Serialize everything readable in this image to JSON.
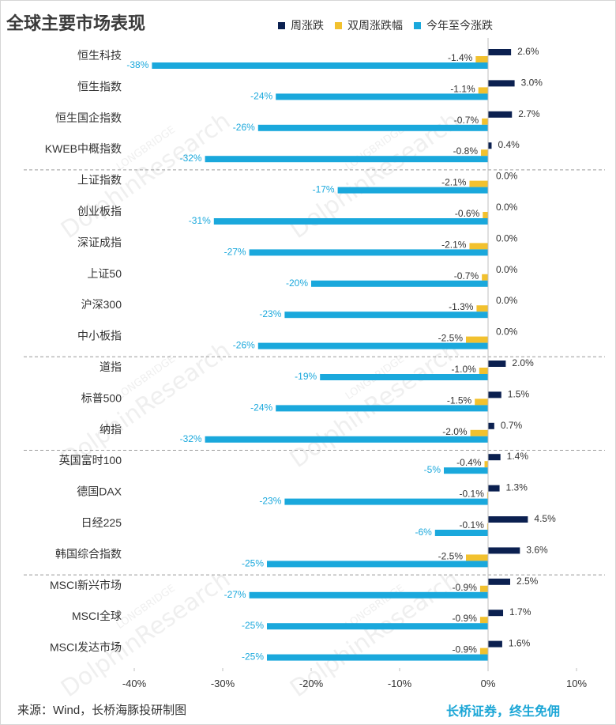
{
  "title": "全球主要市场表现",
  "footer": {
    "source": "来源：Wind，长桥海豚投研制图",
    "brand": "长桥证券，终生免佣"
  },
  "watermark": {
    "main": "DolphinResearch",
    "sub": "LONGBRIDGE"
  },
  "colors": {
    "weekly": "#0b2050",
    "biweekly": "#f2c12e",
    "ytd": "#1aa8dc",
    "label_ytd": "#1aa8dc",
    "label_other": "#333333"
  },
  "chart_data": {
    "type": "bar",
    "orientation": "horizontal",
    "title": "全球主要市场表现",
    "xlim": [
      -40,
      10
    ],
    "x_ticks": [
      "-40%",
      "-30%",
      "-20%",
      "-10%",
      "0%",
      "10%"
    ],
    "x_tick_values": [
      -40,
      -30,
      -20,
      -10,
      0,
      10
    ],
    "grid": false,
    "legend_position": "top",
    "categories": [
      "恒生科技",
      "恒生指数",
      "恒生国企指数",
      "KWEB中概指数",
      "上证指数",
      "创业板指",
      "深证成指",
      "上证50",
      "沪深300",
      "中小板指",
      "道指",
      "标普500",
      "纳指",
      "英国富时100",
      "德国DAX",
      "日经225",
      "韩国综合指数",
      "MSCI新兴市场",
      "MSCI全球",
      "MSCI发达市场"
    ],
    "group_breaks_after": [
      3,
      9,
      12,
      16
    ],
    "series": [
      {
        "name": "周涨跌",
        "values": [
          2.6,
          3.0,
          2.7,
          0.4,
          0.0,
          0.0,
          0.0,
          0.0,
          0.0,
          0.0,
          2.0,
          1.5,
          0.7,
          1.4,
          1.3,
          4.5,
          3.6,
          2.5,
          1.7,
          1.6
        ],
        "labels": [
          "2.6%",
          "3.0%",
          "2.7%",
          "0.4%",
          "0.0%",
          "0.0%",
          "0.0%",
          "0.0%",
          "0.0%",
          "0.0%",
          "2.0%",
          "1.5%",
          "0.7%",
          "1.4%",
          "1.3%",
          "4.5%",
          "3.6%",
          "2.5%",
          "1.7%",
          "1.6%"
        ]
      },
      {
        "name": "双周涨跌幅",
        "values": [
          -1.4,
          -1.1,
          -0.7,
          -0.8,
          -2.1,
          -0.6,
          -2.1,
          -0.7,
          -1.3,
          -2.5,
          -1.0,
          -1.5,
          -2.0,
          -0.4,
          -0.1,
          -0.1,
          -2.5,
          -0.9,
          -0.9,
          -0.9
        ],
        "labels": [
          "-1.4%",
          "-1.1%",
          "-0.7%",
          "-0.8%",
          "-2.1%",
          "-0.6%",
          "-2.1%",
          "-0.7%",
          "-1.3%",
          "-2.5%",
          "-1.0%",
          "-1.5%",
          "-2.0%",
          "-0.4%",
          "-0.1%",
          "-0.1%",
          "-2.5%",
          "-0.9%",
          "-0.9%",
          "-0.9%"
        ]
      },
      {
        "name": "今年至今涨跌",
        "values": [
          -38,
          -24,
          -26,
          -32,
          -17,
          -31,
          -27,
          -20,
          -23,
          -26,
          -19,
          -24,
          -32,
          -5,
          -23,
          -6,
          -25,
          -27,
          -25,
          -25
        ],
        "labels": [
          "-38%",
          "-24%",
          "-26%",
          "-32%",
          "-17%",
          "-31%",
          "-27%",
          "-20%",
          "-23%",
          "-26%",
          "-19%",
          "-24%",
          "-32%",
          "-5%",
          "-23%",
          "-6%",
          "-25%",
          "-27%",
          "-25%",
          "-25%"
        ]
      }
    ]
  }
}
